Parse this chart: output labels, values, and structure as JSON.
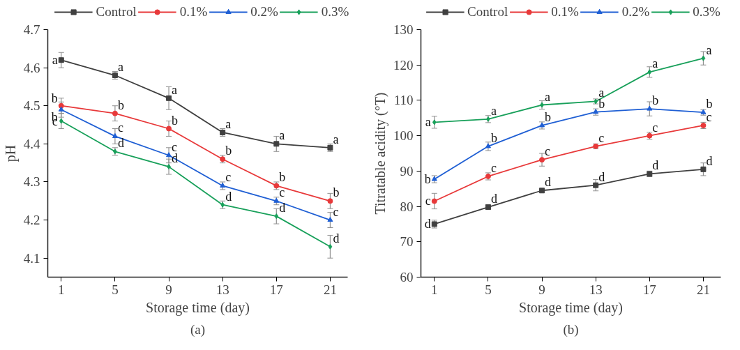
{
  "chart_data": [
    {
      "type": "line",
      "xlabel": "Storage time (day)",
      "ylabel": "pH",
      "x": [
        1,
        5,
        9,
        13,
        17,
        21
      ],
      "xlim": [
        0,
        22.3
      ],
      "xticks": [
        1,
        5,
        9,
        13,
        17,
        21
      ],
      "ylim": [
        4.05,
        4.7
      ],
      "yticks": [
        4.1,
        4.2,
        4.3,
        4.4,
        4.5,
        4.6,
        4.7
      ],
      "grid": false,
      "legend": "top",
      "series": [
        {
          "name": "Control",
          "color": "#404040",
          "marker": "square",
          "values": [
            4.62,
            4.58,
            4.52,
            4.43,
            4.4,
            4.39
          ],
          "errors": [
            0.02,
            0.01,
            0.03,
            0.01,
            0.02,
            0.01
          ]
        },
        {
          "name": "0.1%",
          "color": "#e8393a",
          "marker": "circle",
          "values": [
            4.5,
            4.48,
            4.44,
            4.36,
            4.29,
            4.25
          ],
          "errors": [
            0.02,
            0.02,
            0.02,
            0.01,
            0.01,
            0.02
          ]
        },
        {
          "name": "0.2%",
          "color": "#1f5fd4",
          "marker": "triangle",
          "values": [
            4.49,
            4.42,
            4.37,
            4.29,
            4.25,
            4.2
          ],
          "errors": [
            0.02,
            0.02,
            0.02,
            0.01,
            0.01,
            0.02
          ]
        },
        {
          "name": "0.3%",
          "color": "#18a05a",
          "marker": "diamond",
          "values": [
            4.46,
            4.38,
            4.34,
            4.24,
            4.21,
            4.13
          ],
          "errors": [
            0.02,
            0.01,
            0.02,
            0.01,
            0.02,
            0.03
          ]
        }
      ],
      "annotations": [
        {
          "text": "a",
          "x": 1,
          "y": 4.62
        },
        {
          "text": "a",
          "x": 5,
          "y": 4.58
        },
        {
          "text": "a",
          "x": 9,
          "y": 4.52
        },
        {
          "text": "a",
          "x": 13,
          "y": 4.43
        },
        {
          "text": "a",
          "x": 17,
          "y": 4.4
        },
        {
          "text": "a",
          "x": 21,
          "y": 4.39
        },
        {
          "text": "b",
          "x": 1,
          "y": 4.5
        },
        {
          "text": "b",
          "x": 5,
          "y": 4.48
        },
        {
          "text": "b",
          "x": 9,
          "y": 4.44
        },
        {
          "text": "b",
          "x": 13,
          "y": 4.36
        },
        {
          "text": "b",
          "x": 17,
          "y": 4.29
        },
        {
          "text": "b",
          "x": 21,
          "y": 4.25
        },
        {
          "text": "b",
          "x": 1,
          "y": 4.49
        },
        {
          "text": "c",
          "x": 5,
          "y": 4.42
        },
        {
          "text": "c",
          "x": 9,
          "y": 4.37
        },
        {
          "text": "c",
          "x": 13,
          "y": 4.29
        },
        {
          "text": "c",
          "x": 17,
          "y": 4.25
        },
        {
          "text": "c",
          "x": 21,
          "y": 4.2
        },
        {
          "text": "c",
          "x": 1,
          "y": 4.46
        },
        {
          "text": "d",
          "x": 5,
          "y": 4.38
        },
        {
          "text": "d",
          "x": 9,
          "y": 4.34
        },
        {
          "text": "d",
          "x": 13,
          "y": 4.24
        },
        {
          "text": "d",
          "x": 17,
          "y": 4.21
        },
        {
          "text": "d",
          "x": 21,
          "y": 4.13
        },
        "(a)"
      ]
    },
    {
      "type": "line",
      "xlabel": "Storage time (day)",
      "ylabel": "Titratable acidity (°T)",
      "x": [
        1,
        5,
        9,
        13,
        17,
        21
      ],
      "xlim": [
        0,
        22.3
      ],
      "xticks": [
        1,
        5,
        9,
        13,
        17,
        21
      ],
      "ylim": [
        60,
        130
      ],
      "yticks": [
        60,
        70,
        80,
        90,
        100,
        110,
        120,
        130
      ],
      "grid": false,
      "legend": "top",
      "series": [
        {
          "name": "Control",
          "color": "#404040",
          "marker": "square",
          "values": [
            75.0,
            79.8,
            84.5,
            86.0,
            89.2,
            90.5
          ],
          "errors": [
            1.1,
            0.6,
            0.4,
            1.6,
            0.8,
            1.8
          ]
        },
        {
          "name": "0.1%",
          "color": "#e8393a",
          "marker": "circle",
          "values": [
            81.5,
            88.5,
            93.2,
            97.0,
            100.0,
            102.9
          ],
          "errors": [
            2.2,
            1.0,
            1.8,
            0.7,
            1.0,
            0.9
          ]
        },
        {
          "name": "0.2%",
          "color": "#1f5fd4",
          "marker": "triangle",
          "values": [
            87.7,
            97.0,
            102.9,
            106.7,
            107.6,
            106.6
          ],
          "errors": [
            1.0,
            1.2,
            1.0,
            0.9,
            2.0,
            0.8
          ]
        },
        {
          "name": "0.3%",
          "color": "#18a05a",
          "marker": "diamond",
          "values": [
            103.8,
            104.7,
            108.7,
            109.7,
            118.0,
            121.9
          ],
          "errors": [
            1.7,
            1.0,
            1.2,
            0.7,
            1.5,
            1.9
          ]
        }
      ],
      "annotations": [
        {
          "text": "d",
          "x": 1,
          "y": 75.0
        },
        {
          "text": "d",
          "x": 5,
          "y": 79.8
        },
        {
          "text": "d",
          "x": 9,
          "y": 84.5
        },
        {
          "text": "d",
          "x": 13,
          "y": 86.0
        },
        {
          "text": "d",
          "x": 17,
          "y": 89.2
        },
        {
          "text": "d",
          "x": 21,
          "y": 90.5
        },
        {
          "text": "c",
          "x": 1,
          "y": 81.5
        },
        {
          "text": "c",
          "x": 5,
          "y": 88.5
        },
        {
          "text": "c",
          "x": 9,
          "y": 93.2
        },
        {
          "text": "c",
          "x": 13,
          "y": 97.0
        },
        {
          "text": "c",
          "x": 17,
          "y": 100.0
        },
        {
          "text": "c",
          "x": 21,
          "y": 102.9
        },
        {
          "text": "b",
          "x": 1,
          "y": 87.7
        },
        {
          "text": "b",
          "x": 5,
          "y": 97.0
        },
        {
          "text": "b",
          "x": 9,
          "y": 102.9
        },
        {
          "text": "b",
          "x": 13,
          "y": 106.7
        },
        {
          "text": "b",
          "x": 17,
          "y": 107.6
        },
        {
          "text": "b",
          "x": 21,
          "y": 106.6
        },
        {
          "text": "a",
          "x": 1,
          "y": 103.8
        },
        {
          "text": "a",
          "x": 5,
          "y": 104.7
        },
        {
          "text": "a",
          "x": 9,
          "y": 108.7
        },
        {
          "text": "a",
          "x": 13,
          "y": 109.7
        },
        {
          "text": "a",
          "x": 17,
          "y": 118.0
        },
        {
          "text": "a",
          "x": 21,
          "y": 121.9
        },
        "(b)"
      ]
    }
  ]
}
